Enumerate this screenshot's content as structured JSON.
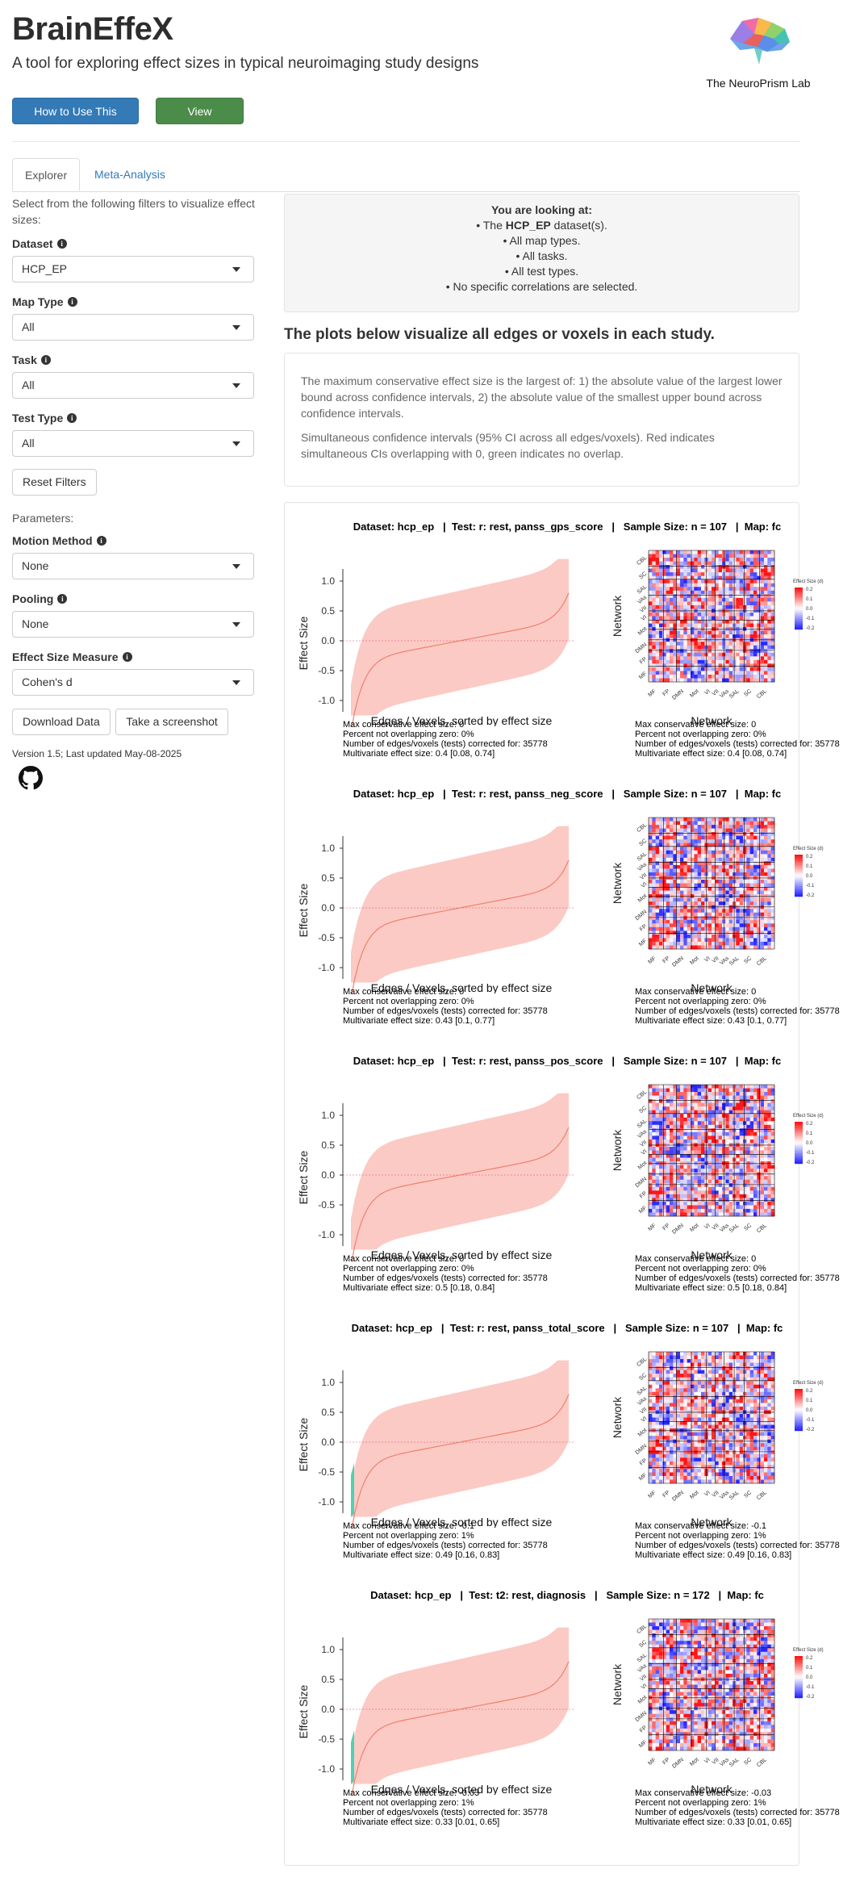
{
  "header": {
    "title": "BrainEffeX",
    "subtitle": "A tool for exploring effect sizes in typical neuroimaging study designs",
    "lab_name": "The NeuroPrism Lab",
    "how_button": "How to Use This App",
    "preprint_button": "View Preprint"
  },
  "tabs": [
    {
      "label": "Explorer"
    },
    {
      "label": "Meta-Analysis"
    }
  ],
  "sidebar": {
    "intro": "Select from the following filters to visualize effect sizes:",
    "dataset": {
      "label": "Dataset",
      "value": "HCP_EP"
    },
    "map_type": {
      "label": "Map Type",
      "value": "All"
    },
    "task": {
      "label": "Task",
      "value": "All"
    },
    "test_type": {
      "label": "Test Type",
      "value": "All"
    },
    "reset_button": "Reset Filters",
    "parameters_label": "Parameters:",
    "motion": {
      "label": "Motion Method",
      "value": "None"
    },
    "pooling": {
      "label": "Pooling",
      "value": "None"
    },
    "measure": {
      "label": "Effect Size Measure",
      "value": "Cohen's d"
    },
    "download_button": "Download Data",
    "screenshot_button": "Take a screenshot",
    "version": "Version 1.5; Last updated May-08-2025"
  },
  "summary": {
    "heading": "You are looking at:",
    "line1_prefix": "• The ",
    "line1_bold": "HCP_EP",
    "line1_suffix": " dataset(s).",
    "line2": "• All map types.",
    "line3": "• All tasks.",
    "line4": "• All test types.",
    "line5": "• No specific correlations are selected."
  },
  "plots_heading": "The plots below visualize all edges or voxels in each study.",
  "notes": {
    "p1": "The maximum conservative effect size is the largest of: 1) the absolute value of the largest lower bound across confidence intervals, 2) the absolute value of the smallest upper bound across confidence intervals.",
    "p2": "Simultaneous confidence intervals (95% CI across all edges/voxels). Red indicates simultaneous CIs overlapping with 0, green indicates no overlap."
  },
  "plot_labels": {
    "y_axis": "Effect Size",
    "x_axis": "Edges / Voxels, sorted by effect size",
    "matrix_axis": "Network",
    "legend_title": "Effect Size (d)",
    "y_ticks": [
      "1.0",
      "0.5",
      "0.0",
      "-0.5",
      "-1.0"
    ],
    "network_ticks": [
      "MF",
      "FP",
      "DMN",
      "Mot",
      "VI",
      "VII",
      "VAs",
      "SAL",
      "SC",
      "CBL"
    ]
  },
  "studies": [
    {
      "title": "Dataset: hcp_ep   |  Test: r: rest, panss_gps_score   |   Sample Size: n = 107   |  Map: fc",
      "stats": [
        "Max conservative effect size: 0",
        "Percent not overlapping zero: 0%",
        "Number of edges/voxels (tests) corrected for: 35778",
        "Multivariate effect size: 0.4 [0.08, 0.74]"
      ],
      "green_tail": false
    },
    {
      "title": "Dataset: hcp_ep   |  Test: r: rest, panss_neg_score   |   Sample Size: n = 107   |  Map: fc",
      "stats": [
        "Max conservative effect size: 0",
        "Percent not overlapping zero: 0%",
        "Number of edges/voxels (tests) corrected for: 35778",
        "Multivariate effect size: 0.43 [0.1, 0.77]"
      ],
      "green_tail": false
    },
    {
      "title": "Dataset: hcp_ep   |  Test: r: rest, panss_pos_score   |   Sample Size: n = 107   |  Map: fc",
      "stats": [
        "Max conservative effect size: 0",
        "Percent not overlapping zero: 0%",
        "Number of edges/voxels (tests) corrected for: 35778",
        "Multivariate effect size: 0.5 [0.18, 0.84]"
      ],
      "green_tail": false
    },
    {
      "title": "Dataset: hcp_ep   |  Test: r: rest, panss_total_score   |   Sample Size: n = 107   |  Map: fc",
      "stats": [
        "Max conservative effect size: -0.1",
        "Percent not overlapping zero: 1%",
        "Number of edges/voxels (tests) corrected for: 35778",
        "Multivariate effect size: 0.49 [0.16, 0.83]"
      ],
      "green_tail": true
    },
    {
      "title": "Dataset: hcp_ep   |  Test: t2: rest, diagnosis   |   Sample Size: n = 172   |  Map: fc",
      "stats": [
        "Max conservative effect size: -0.03",
        "Percent not overlapping zero: 1%",
        "Number of edges/voxels (tests) corrected for: 35778",
        "Multivariate effect size: 0.33 [0.01, 0.65]"
      ],
      "green_tail": true
    }
  ],
  "colors": {
    "primary": "#337ab7",
    "success": "#4c8c4a",
    "ci_fill": "#fbcac4",
    "line": "#f08070",
    "green": "#4ed1b5"
  }
}
